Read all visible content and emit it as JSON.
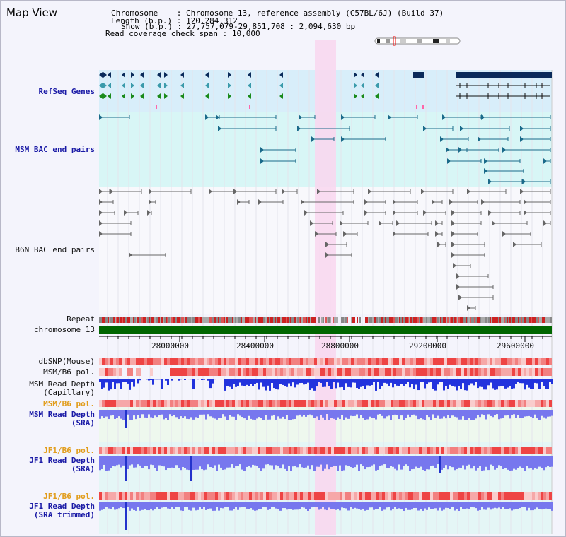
{
  "panel": {
    "title": "Map View"
  },
  "info": {
    "chromosome_label": "Chromosome",
    "chromosome_value": "Chromosome 13, reference assembly (C57BL/6J) (Build 37)",
    "length_label": "Length (b.p.)",
    "length_value": "120,284,312",
    "show_label": "Show (b.p.)",
    "show_value": "27,757,079-29,851,708 : 2,094,630 bp",
    "coverage_label": "Read coverage check span",
    "coverage_value": "10,000"
  },
  "tracks": {
    "refseq": "RefSeq Genes",
    "msm_bac": "MSM BAC end pairs",
    "b6n_bac": "B6N BAC end pairs",
    "repeat": "Repeat",
    "chromosome": "chromosome 13",
    "dbsnp": "dbSNP(Mouse)",
    "msm_b6_pol": "MSM/B6 pol.",
    "msm_depth_cap_1": "MSM Read Depth",
    "msm_depth_cap_2": "(Capillary)",
    "msm_b6_pol_2": "MSM/B6 pol.",
    "msm_depth_sra_1": "MSM Read Depth",
    "msm_depth_sra_2": "(SRA)",
    "jf1_pol": "JF1/B6 pol.",
    "jf1_depth_1": "JF1 Read Depth",
    "jf1_depth_2": "(SRA)",
    "jf1_pol_2": "JF1/B6 pol.",
    "jf1_trim_1": "JF1 Read Depth",
    "jf1_trim_2": "(SRA trimmed)"
  },
  "axis": {
    "ticks": [
      "28000000",
      "28400000",
      "28800000",
      "29200000",
      "29600000"
    ]
  },
  "colors": {
    "refseq_bg": "#d8eefa",
    "bac_bg": "#d8f6f6",
    "highlight": "#f8d8f0",
    "gene_dark": "#0a2a5a",
    "gene_green": "#1a8a1a",
    "bac_line": "#1a6a8a",
    "b6n_line": "#666666",
    "chromosome": "#006600",
    "depth_blue": "#2233dd",
    "depth_lilac": "#7777ee",
    "pol_red": "#ee3333"
  }
}
